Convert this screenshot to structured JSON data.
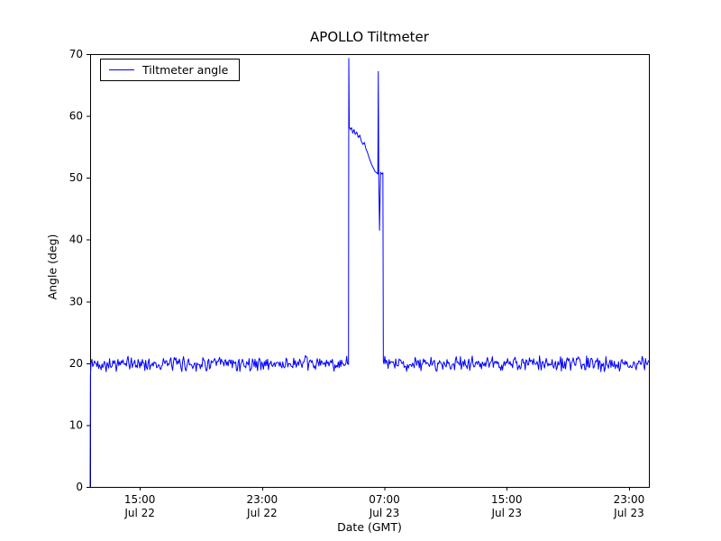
{
  "chart_data": {
    "type": "line",
    "title": "APOLLO Tiltmeter",
    "xlabel": "Date (GMT)",
    "ylabel": "Angle (deg)",
    "ylim": [
      0,
      70
    ],
    "yticks": [
      0,
      10,
      20,
      30,
      40,
      50,
      60,
      70
    ],
    "x_domain_hours": [
      0,
      36.55
    ],
    "xticks": [
      {
        "pos": 3.25,
        "time": "15:00",
        "date": "Jul 22"
      },
      {
        "pos": 11.25,
        "time": "23:00",
        "date": "Jul 22"
      },
      {
        "pos": 19.25,
        "time": "07:00",
        "date": "Jul 23"
      },
      {
        "pos": 27.25,
        "time": "15:00",
        "date": "Jul 23"
      },
      {
        "pos": 35.25,
        "time": "23:00",
        "date": "Jul 23"
      }
    ],
    "legend": {
      "position": "upper left",
      "entries": [
        {
          "label": "Tiltmeter angle",
          "color": "#0000ff"
        }
      ]
    },
    "colors": {
      "line": "#0000ff",
      "axes": "#000000",
      "background": "#ffffff"
    },
    "grid": false,
    "series": [
      {
        "name": "Tiltmeter angle",
        "color": "#0000ff",
        "baseline": {
          "mean": 19.9,
          "noise_amplitude": 1.4,
          "seed": 42,
          "step_hours": 0.055
        },
        "segments": [
          {
            "type": "points",
            "points": [
              [
                0,
                0
              ],
              [
                0.02,
                18.0
              ]
            ]
          },
          {
            "type": "noisy",
            "from": 0.06,
            "to": 16.88
          },
          {
            "type": "points",
            "points": [
              [
                16.9,
                19.8
              ],
              [
                16.92,
                69.3
              ],
              [
                16.95,
                58.3
              ],
              [
                17.02,
                57.8
              ],
              [
                17.1,
                58.1
              ],
              [
                17.18,
                57.2
              ],
              [
                17.26,
                57.8
              ],
              [
                17.34,
                57.0
              ],
              [
                17.44,
                57.4
              ],
              [
                17.54,
                56.5
              ],
              [
                17.64,
                56.9
              ],
              [
                17.74,
                55.9
              ],
              [
                17.84,
                55.4
              ],
              [
                17.94,
                55.7
              ],
              [
                18.04,
                54.7
              ],
              [
                18.14,
                54.1
              ],
              [
                18.24,
                53.3
              ],
              [
                18.34,
                52.6
              ],
              [
                18.44,
                52.0
              ],
              [
                18.54,
                51.5
              ],
              [
                18.64,
                51.0
              ],
              [
                18.74,
                50.8
              ],
              [
                18.82,
                50.6
              ],
              [
                18.85,
                67.2
              ],
              [
                18.88,
                50.2
              ],
              [
                18.93,
                41.5
              ],
              [
                19.0,
                50.9
              ],
              [
                19.08,
                50.6
              ],
              [
                19.15,
                50.8
              ],
              [
                19.18,
                20.3
              ]
            ]
          },
          {
            "type": "noisy",
            "from": 19.22,
            "to": 36.55
          }
        ]
      }
    ]
  }
}
